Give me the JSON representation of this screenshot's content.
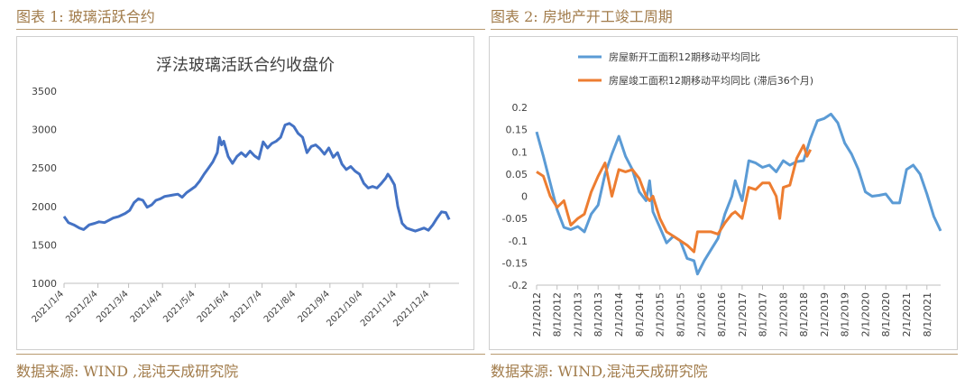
{
  "left": {
    "caption": "图表 1: 玻璃活跃合约",
    "source": "数据来源: WIND ,混沌天成研究院"
  },
  "right": {
    "caption": "图表 2: 房地产开工竣工周期",
    "source": "数据来源: WIND,混沌天成研究院"
  },
  "colors": {
    "caption_text": "#a17b4a",
    "rule": "#b89a70",
    "glass_line": "#4472c4",
    "series_new_starts": "#5b9bd5",
    "series_completions": "#ed7d31"
  },
  "chart_data": [
    {
      "type": "line",
      "title": "浮法玻璃活跃合约收盘价",
      "xlabel": "",
      "ylabel": "",
      "ylim": [
        1000,
        3500
      ],
      "yticks": [
        1000,
        1500,
        2000,
        2500,
        3000,
        3500
      ],
      "xticks": [
        "2021/1/4",
        "2021/2/4",
        "2021/3/4",
        "2021/4/4",
        "2021/5/4",
        "2021/6/4",
        "2021/7/4",
        "2021/8/4",
        "2021/9/4",
        "2021/10/4",
        "2021/11/4",
        "2021/12/4"
      ],
      "grid": false,
      "legend": "none",
      "series": [
        {
          "values": [
            [
              "2021-01-04",
              1870
            ],
            [
              "2021-01-08",
              1790
            ],
            [
              "2021-01-13",
              1760
            ],
            [
              "2021-01-18",
              1720
            ],
            [
              "2021-01-22",
              1700
            ],
            [
              "2021-01-27",
              1760
            ],
            [
              "2021-02-01",
              1780
            ],
            [
              "2021-02-05",
              1800
            ],
            [
              "2021-02-10",
              1790
            ],
            [
              "2021-02-18",
              1850
            ],
            [
              "2021-02-23",
              1870
            ],
            [
              "2021-03-01",
              1910
            ],
            [
              "2021-03-05",
              1950
            ],
            [
              "2021-03-09",
              2050
            ],
            [
              "2021-03-13",
              2100
            ],
            [
              "2021-03-17",
              2080
            ],
            [
              "2021-03-21",
              1990
            ],
            [
              "2021-03-25",
              2020
            ],
            [
              "2021-03-29",
              2080
            ],
            [
              "2021-04-02",
              2100
            ],
            [
              "2021-04-06",
              2130
            ],
            [
              "2021-04-10",
              2140
            ],
            [
              "2021-04-14",
              2150
            ],
            [
              "2021-04-18",
              2160
            ],
            [
              "2021-04-22",
              2120
            ],
            [
              "2021-04-26",
              2180
            ],
            [
              "2021-04-30",
              2220
            ],
            [
              "2021-05-04",
              2260
            ],
            [
              "2021-05-08",
              2330
            ],
            [
              "2021-05-12",
              2420
            ],
            [
              "2021-05-16",
              2500
            ],
            [
              "2021-05-20",
              2580
            ],
            [
              "2021-05-24",
              2700
            ],
            [
              "2021-05-26",
              2900
            ],
            [
              "2021-05-28",
              2800
            ],
            [
              "2021-05-30",
              2850
            ],
            [
              "2021-06-03",
              2650
            ],
            [
              "2021-06-07",
              2560
            ],
            [
              "2021-06-11",
              2650
            ],
            [
              "2021-06-15",
              2700
            ],
            [
              "2021-06-19",
              2650
            ],
            [
              "2021-06-23",
              2720
            ],
            [
              "2021-06-27",
              2660
            ],
            [
              "2021-07-01",
              2620
            ],
            [
              "2021-07-05",
              2840
            ],
            [
              "2021-07-09",
              2760
            ],
            [
              "2021-07-13",
              2820
            ],
            [
              "2021-07-17",
              2850
            ],
            [
              "2021-07-21",
              2900
            ],
            [
              "2021-07-25",
              3060
            ],
            [
              "2021-07-29",
              3080
            ],
            [
              "2021-08-02",
              3040
            ],
            [
              "2021-08-06",
              2950
            ],
            [
              "2021-08-10",
              2900
            ],
            [
              "2021-08-14",
              2700
            ],
            [
              "2021-08-18",
              2780
            ],
            [
              "2021-08-22",
              2800
            ],
            [
              "2021-08-26",
              2750
            ],
            [
              "2021-08-30",
              2680
            ],
            [
              "2021-09-03",
              2760
            ],
            [
              "2021-09-07",
              2640
            ],
            [
              "2021-09-11",
              2700
            ],
            [
              "2021-09-15",
              2550
            ],
            [
              "2021-09-19",
              2480
            ],
            [
              "2021-09-23",
              2520
            ],
            [
              "2021-09-27",
              2460
            ],
            [
              "2021-10-01",
              2420
            ],
            [
              "2021-10-05",
              2300
            ],
            [
              "2021-10-09",
              2240
            ],
            [
              "2021-10-13",
              2260
            ],
            [
              "2021-10-17",
              2240
            ],
            [
              "2021-10-21",
              2300
            ],
            [
              "2021-10-25",
              2370
            ],
            [
              "2021-10-27",
              2420
            ],
            [
              "2021-10-29",
              2380
            ],
            [
              "2021-11-02",
              2280
            ],
            [
              "2021-11-05",
              2000
            ],
            [
              "2021-11-09",
              1780
            ],
            [
              "2021-11-13",
              1720
            ],
            [
              "2021-11-17",
              1700
            ],
            [
              "2021-11-21",
              1680
            ],
            [
              "2021-11-25",
              1700
            ],
            [
              "2021-11-29",
              1720
            ],
            [
              "2021-12-03",
              1690
            ],
            [
              "2021-12-07",
              1760
            ],
            [
              "2021-12-11",
              1850
            ],
            [
              "2021-12-15",
              1930
            ],
            [
              "2021-12-19",
              1920
            ],
            [
              "2021-12-22",
              1830
            ]
          ]
        }
      ]
    },
    {
      "type": "line",
      "title": "",
      "xlabel": "",
      "ylabel": "",
      "ylim": [
        -0.2,
        0.2
      ],
      "yticks": [
        -0.2,
        -0.15,
        -0.1,
        -0.05,
        0,
        0.05,
        0.1,
        0.15,
        0.2
      ],
      "yticklabels": [
        "-0.2",
        "-0.15",
        "-0.1",
        "-0.05",
        "0",
        "0.05",
        "0.1",
        "0.15",
        "0.2"
      ],
      "xticks": [
        "2/1/2012",
        "8/1/2012",
        "2/1/2013",
        "8/1/2013",
        "2/1/2014",
        "8/1/2014",
        "2/1/2015",
        "8/1/2015",
        "2/1/2016",
        "8/1/2016",
        "2/1/2017",
        "8/1/2017",
        "2/1/2018",
        "8/1/2018",
        "2/1/2019",
        "8/1/2019",
        "2/1/2020",
        "8/1/2020",
        "2/1/2021",
        "8/1/2021"
      ],
      "grid": false,
      "legend": "top",
      "series": [
        {
          "name": "房屋新开工面积12期移动平均同比",
          "values": [
            [
              "2012-02-01",
              0.145
            ],
            [
              "2012-04-01",
              0.09
            ],
            [
              "2012-06-01",
              0.03
            ],
            [
              "2012-08-01",
              -0.03
            ],
            [
              "2012-10-01",
              -0.07
            ],
            [
              "2012-12-01",
              -0.075
            ],
            [
              "2013-02-01",
              -0.068
            ],
            [
              "2013-04-01",
              -0.08
            ],
            [
              "2013-06-01",
              -0.04
            ],
            [
              "2013-08-01",
              -0.02
            ],
            [
              "2013-10-01",
              0.05
            ],
            [
              "2013-12-01",
              0.095
            ],
            [
              "2014-02-01",
              0.135
            ],
            [
              "2014-04-01",
              0.09
            ],
            [
              "2014-06-01",
              0.06
            ],
            [
              "2014-08-01",
              0.01
            ],
            [
              "2014-10-01",
              -0.01
            ],
            [
              "2014-11-01",
              0.035
            ],
            [
              "2014-12-01",
              -0.035
            ],
            [
              "2015-02-01",
              -0.07
            ],
            [
              "2015-04-01",
              -0.105
            ],
            [
              "2015-06-01",
              -0.09
            ],
            [
              "2015-08-01",
              -0.1
            ],
            [
              "2015-10-01",
              -0.14
            ],
            [
              "2015-12-01",
              -0.145
            ],
            [
              "2016-01-01",
              -0.175
            ],
            [
              "2016-03-01",
              -0.145
            ],
            [
              "2016-05-01",
              -0.12
            ],
            [
              "2016-07-01",
              -0.095
            ],
            [
              "2016-09-01",
              -0.04
            ],
            [
              "2016-11-01",
              0.0
            ],
            [
              "2016-12-01",
              0.035
            ],
            [
              "2017-02-01",
              -0.01
            ],
            [
              "2017-04-01",
              0.08
            ],
            [
              "2017-06-01",
              0.075
            ],
            [
              "2017-08-01",
              0.065
            ],
            [
              "2017-10-01",
              0.07
            ],
            [
              "2017-12-01",
              0.055
            ],
            [
              "2018-02-01",
              0.08
            ],
            [
              "2018-04-01",
              0.07
            ],
            [
              "2018-06-01",
              0.078
            ],
            [
              "2018-08-01",
              0.08
            ],
            [
              "2018-10-01",
              0.13
            ],
            [
              "2018-12-01",
              0.17
            ],
            [
              "2019-02-01",
              0.175
            ],
            [
              "2019-04-01",
              0.185
            ],
            [
              "2019-06-01",
              0.165
            ],
            [
              "2019-08-01",
              0.12
            ],
            [
              "2019-10-01",
              0.095
            ],
            [
              "2019-12-01",
              0.06
            ],
            [
              "2020-02-01",
              0.01
            ],
            [
              "2020-04-01",
              0.0
            ],
            [
              "2020-06-01",
              0.002
            ],
            [
              "2020-08-01",
              0.005
            ],
            [
              "2020-10-01",
              -0.015
            ],
            [
              "2020-12-01",
              -0.015
            ],
            [
              "2021-02-01",
              0.06
            ],
            [
              "2021-04-01",
              0.07
            ],
            [
              "2021-06-01",
              0.05
            ],
            [
              "2021-08-01",
              0.005
            ],
            [
              "2021-10-01",
              -0.045
            ],
            [
              "2021-12-01",
              -0.078
            ]
          ]
        },
        {
          "name": "房屋竣工面积12期移动平均同比 (滞后36个月)",
          "values": [
            [
              "2012-02-01",
              0.055
            ],
            [
              "2012-04-01",
              0.045
            ],
            [
              "2012-06-01",
              0.0
            ],
            [
              "2012-08-01",
              -0.025
            ],
            [
              "2012-10-01",
              -0.01
            ],
            [
              "2012-12-01",
              -0.065
            ],
            [
              "2013-02-01",
              -0.05
            ],
            [
              "2013-04-01",
              -0.04
            ],
            [
              "2013-06-01",
              0.01
            ],
            [
              "2013-08-01",
              0.045
            ],
            [
              "2013-10-01",
              0.075
            ],
            [
              "2013-12-01",
              0.0
            ],
            [
              "2014-02-01",
              0.06
            ],
            [
              "2014-04-01",
              0.055
            ],
            [
              "2014-06-01",
              0.06
            ],
            [
              "2014-08-01",
              0.04
            ],
            [
              "2014-10-01",
              0.0
            ],
            [
              "2014-11-01",
              -0.01
            ],
            [
              "2014-12-01",
              0.0
            ],
            [
              "2015-02-01",
              -0.05
            ],
            [
              "2015-04-01",
              -0.08
            ],
            [
              "2015-06-01",
              -0.09
            ],
            [
              "2015-08-01",
              -0.1
            ],
            [
              "2015-10-01",
              -0.11
            ],
            [
              "2015-12-01",
              -0.125
            ],
            [
              "2016-01-01",
              -0.08
            ],
            [
              "2016-03-01",
              -0.08
            ],
            [
              "2016-05-01",
              -0.08
            ],
            [
              "2016-07-01",
              -0.085
            ],
            [
              "2016-09-01",
              -0.06
            ],
            [
              "2016-11-01",
              -0.04
            ],
            [
              "2016-12-01",
              -0.035
            ],
            [
              "2017-02-01",
              -0.05
            ],
            [
              "2017-04-01",
              0.02
            ],
            [
              "2017-06-01",
              0.015
            ],
            [
              "2017-08-01",
              0.03
            ],
            [
              "2017-10-01",
              0.03
            ],
            [
              "2017-12-01",
              0.0
            ],
            [
              "2018-01-01",
              -0.05
            ],
            [
              "2018-02-01",
              0.02
            ],
            [
              "2018-04-01",
              0.025
            ],
            [
              "2018-06-01",
              0.085
            ],
            [
              "2018-08-01",
              0.115
            ],
            [
              "2018-09-01",
              0.09
            ],
            [
              "2018-10-01",
              0.105
            ]
          ]
        }
      ]
    }
  ]
}
